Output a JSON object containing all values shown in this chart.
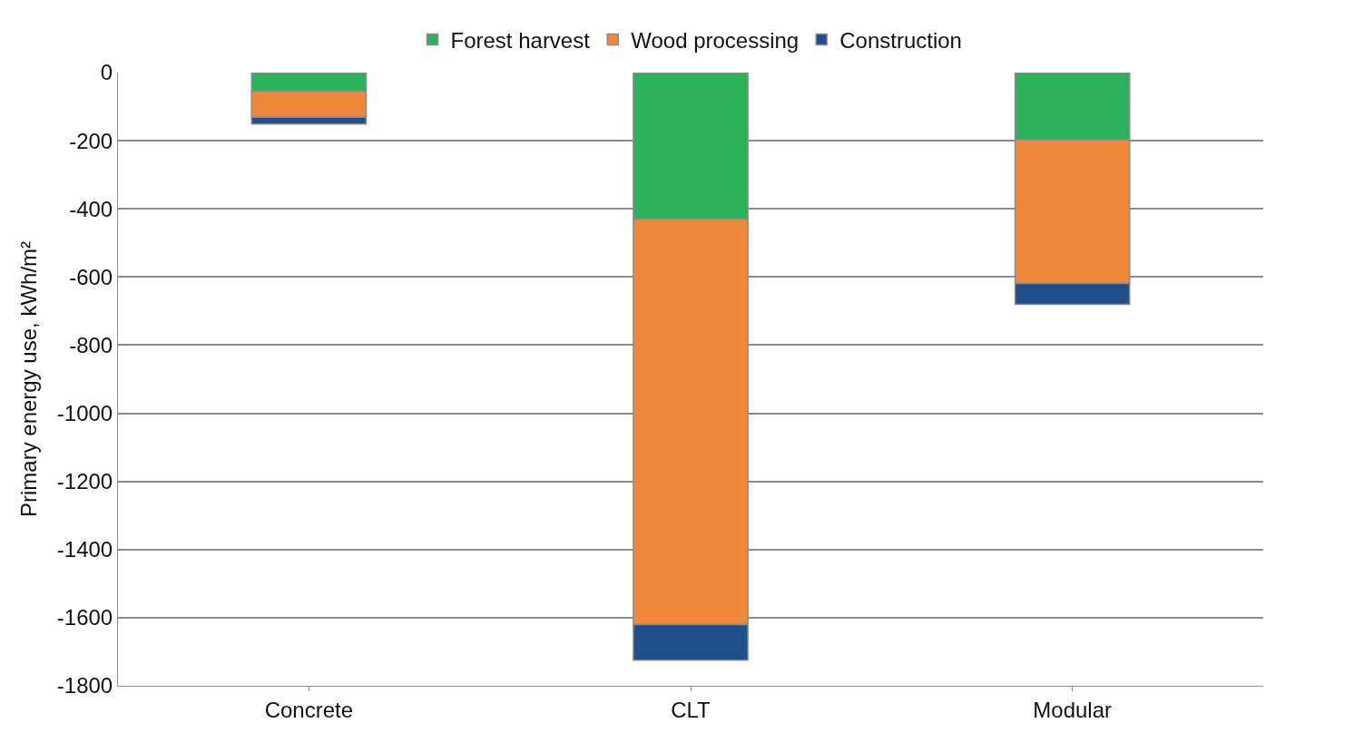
{
  "chart_data": {
    "type": "bar",
    "stacked": true,
    "ylabel": "Primary energy use, kWh/m²",
    "categories": [
      "Concrete",
      "CLT",
      "Modular"
    ],
    "series": [
      {
        "name": "Forest harvest",
        "color": "#2bb25a",
        "values": [
          -55,
          -430,
          -197
        ]
      },
      {
        "name": "Wood processing",
        "color": "#f0883a",
        "values": [
          -76,
          -1190,
          -422
        ]
      },
      {
        "name": "Construction",
        "color": "#1f4e8c",
        "values": [
          -20,
          -105,
          -61
        ]
      }
    ],
    "ylim": [
      -1800,
      0
    ],
    "yticks": [
      0,
      -200,
      -400,
      -600,
      -800,
      -1000,
      -1200,
      -1400,
      -1600,
      -1800
    ],
    "grid": "y",
    "legend": "top"
  }
}
